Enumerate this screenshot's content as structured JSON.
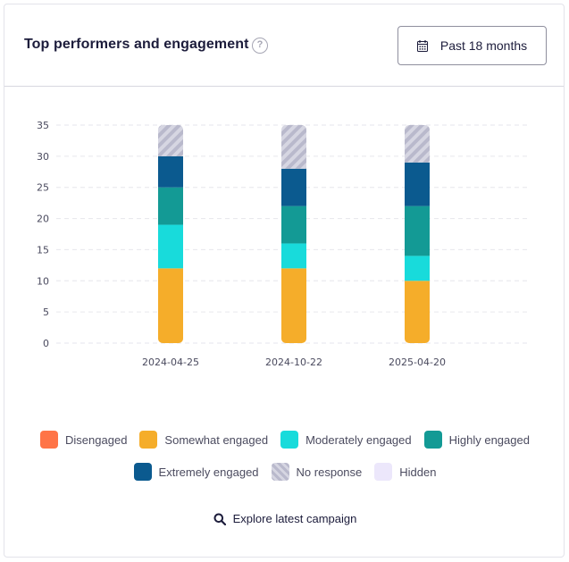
{
  "header": {
    "title": "Top performers and engagement",
    "help_icon": "question-circle-icon",
    "date_button_label": "Past 18 months",
    "date_button_icon": "calendar-icon"
  },
  "chart_data": {
    "type": "bar",
    "stacked": true,
    "categories": [
      "2024-04-25",
      "2024-10-22",
      "2025-04-20"
    ],
    "ylim": [
      0,
      35
    ],
    "yticks": [
      0,
      5,
      10,
      15,
      20,
      25,
      30,
      35
    ],
    "grid": true,
    "legend_position": "bottom",
    "series": [
      {
        "name": "Disengaged",
        "color": "#ff7447",
        "values": [
          0,
          0,
          0
        ]
      },
      {
        "name": "Somewhat engaged",
        "color": "#f5ad2a",
        "values": [
          12,
          12,
          10
        ]
      },
      {
        "name": "Moderately engaged",
        "color": "#18dbdb",
        "values": [
          7,
          4,
          4
        ]
      },
      {
        "name": "Highly engaged",
        "color": "#139a95",
        "values": [
          6,
          6,
          8
        ]
      },
      {
        "name": "Extremely engaged",
        "color": "#0b5a8f",
        "values": [
          5,
          6,
          7
        ]
      },
      {
        "name": "No response",
        "color": "#c4c4d4",
        "pattern": "hatched",
        "values": [
          5,
          7,
          6
        ]
      },
      {
        "name": "Hidden",
        "color": "#ece7fb",
        "values": [
          0,
          0,
          0
        ]
      }
    ]
  },
  "footer": {
    "explore_label": "Explore latest campaign",
    "explore_icon": "search-icon"
  }
}
